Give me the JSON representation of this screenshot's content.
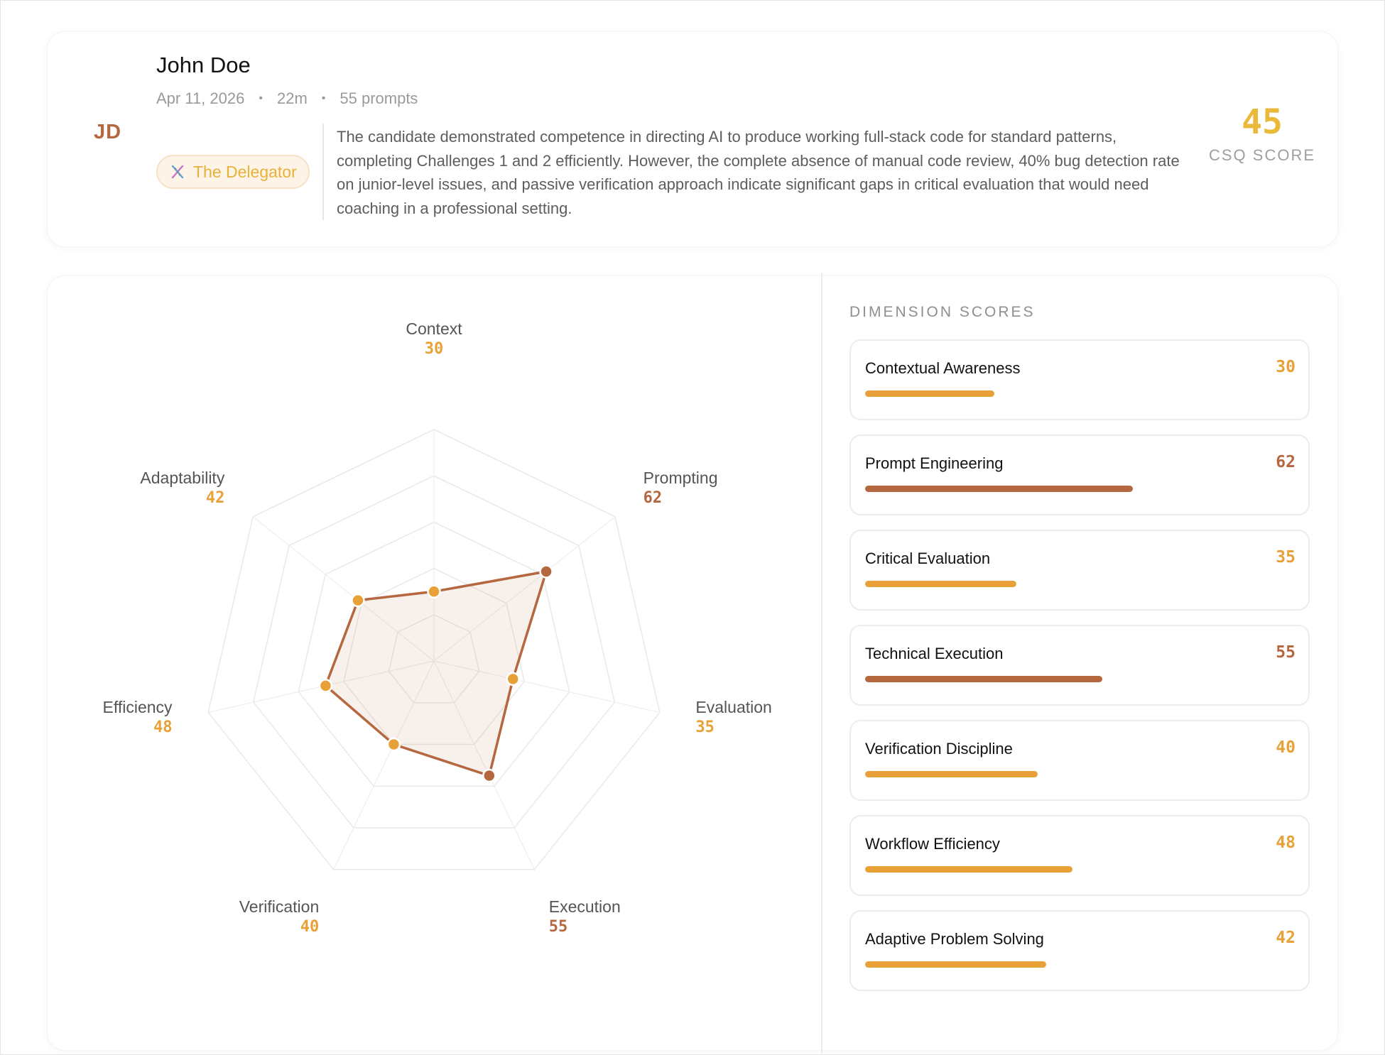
{
  "candidate": {
    "initials": "JD",
    "name": "John Doe",
    "date": "Apr 11, 2026",
    "duration": "22m",
    "prompts": "55 prompts",
    "badge": {
      "label": "The Delegator",
      "icon": "dna-icon"
    },
    "summary": "The candidate demonstrated competence in directing AI to produce working full-stack code for standard patterns, completing Challenges 1 and 2 efficiently. However, the complete absence of manual code review, 40% bug detection rate on junior-level issues, and passive verification approach indicate significant gaps in critical evaluation that would need coaching in a professional setting.",
    "score": {
      "value": "45",
      "label": "CSQ SCORE"
    }
  },
  "colors": {
    "accent_gold": "#ebb93a",
    "accent_orange": "#e8a137",
    "accent_rust": "#b5673f",
    "text_muted": "#9a9a9a"
  },
  "dimensions": {
    "title": "DIMENSION SCORES",
    "items": [
      {
        "name": "Contextual Awareness",
        "score": 30,
        "color": "#e8a137"
      },
      {
        "name": "Prompt Engineering",
        "score": 62,
        "color": "#b5673f"
      },
      {
        "name": "Critical Evaluation",
        "score": 35,
        "color": "#e8a137"
      },
      {
        "name": "Technical Execution",
        "score": 55,
        "color": "#b5673f"
      },
      {
        "name": "Verification Discipline",
        "score": 40,
        "color": "#e8a137"
      },
      {
        "name": "Workflow Efficiency",
        "score": 48,
        "color": "#e8a137"
      },
      {
        "name": "Adaptive Problem Solving",
        "score": 42,
        "color": "#e8a137"
      }
    ]
  },
  "chart_data": {
    "type": "radar",
    "max": 100,
    "rings": 5,
    "axes": [
      {
        "label": "Context",
        "value": 30,
        "color": "#e8a137"
      },
      {
        "label": "Prompting",
        "value": 62,
        "color": "#b5673f"
      },
      {
        "label": "Evaluation",
        "value": 35,
        "color": "#e8a137"
      },
      {
        "label": "Execution",
        "value": 55,
        "color": "#b5673f"
      },
      {
        "label": "Verification",
        "value": 40,
        "color": "#e8a137"
      },
      {
        "label": "Efficiency",
        "value": 48,
        "color": "#e8a137"
      },
      {
        "label": "Adaptability",
        "value": 42,
        "color": "#e8a137"
      }
    ],
    "polygon_color": "#b5673f"
  }
}
